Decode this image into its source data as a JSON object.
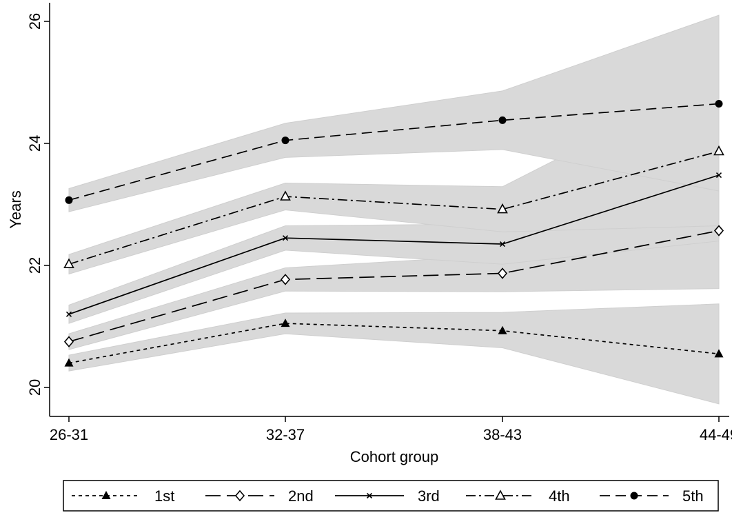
{
  "chart_data": {
    "type": "line",
    "title": "",
    "xlabel": "Cohort group",
    "ylabel": "Years",
    "categories": [
      "26-31",
      "32-37",
      "38-43",
      "44-49"
    ],
    "yticks": [
      "20",
      "22",
      "24",
      "26"
    ],
    "ylim": [
      19.6,
      26.3
    ],
    "grid": false,
    "confidence_band_color": "#d9d9d9",
    "legend_position": "bottom",
    "series": [
      {
        "name": "1st",
        "marker": "filled-triangle",
        "line_style": "short-dash",
        "values": [
          20.4,
          21.05,
          20.93,
          20.55
        ],
        "ci_low": [
          20.27,
          20.88,
          20.65,
          19.73
        ],
        "ci_high": [
          20.53,
          21.22,
          21.23,
          21.37
        ]
      },
      {
        "name": "2nd",
        "marker": "hollow-diamond",
        "line_style": "long-dash",
        "values": [
          20.75,
          21.77,
          21.87,
          22.57
        ],
        "ci_low": [
          20.62,
          21.58,
          21.57,
          21.62
        ],
        "ci_high": [
          20.88,
          21.96,
          22.17,
          23.52
        ]
      },
      {
        "name": "3rd",
        "marker": "x",
        "line_style": "solid",
        "values": [
          21.2,
          22.45,
          22.35,
          23.48
        ],
        "ci_low": [
          21.05,
          22.25,
          22.02,
          22.4
        ],
        "ci_high": [
          21.35,
          22.65,
          22.68,
          24.56
        ]
      },
      {
        "name": "4th",
        "marker": "hollow-triangle",
        "line_style": "dash-dot",
        "values": [
          22.02,
          23.13,
          22.92,
          23.87
        ],
        "ci_low": [
          21.86,
          22.91,
          22.55,
          22.65
        ],
        "ci_high": [
          22.18,
          23.35,
          23.29,
          25.09
        ]
      },
      {
        "name": "5th",
        "marker": "filled-circle",
        "line_style": "dash",
        "values": [
          23.07,
          24.05,
          24.38,
          24.65
        ],
        "ci_low": [
          22.88,
          23.77,
          23.9,
          23.22
        ],
        "ci_high": [
          23.26,
          24.33,
          24.86,
          26.1
        ]
      }
    ]
  }
}
